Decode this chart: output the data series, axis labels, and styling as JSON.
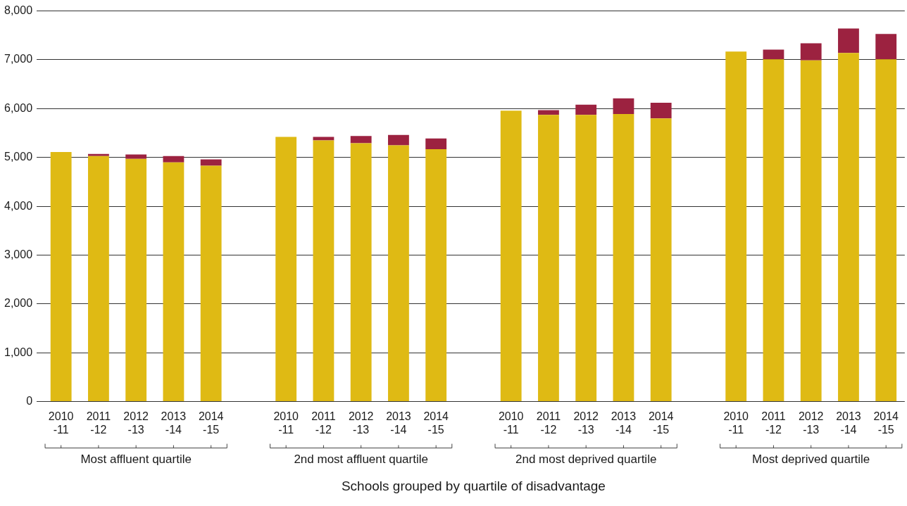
{
  "chart_data": {
    "type": "bar",
    "stacked": true,
    "xlabel": "Schools grouped by quartile of disadvantage",
    "categories": [
      "2010-11",
      "2011-12",
      "2012-13",
      "2013-14",
      "2014-15",
      null,
      "2010-11",
      "2011-12",
      "2012-13",
      "2013-14",
      "2014-15",
      null,
      "2010-11",
      "2011-12",
      "2012-13",
      "2013-14",
      "2014-15",
      null,
      "2010-11",
      "2011-12",
      "2012-13",
      "2013-14",
      "2014-15"
    ],
    "series": [
      {
        "color": "#dfba14",
        "values": [
          5110,
          5030,
          4970,
          4900,
          4830,
          null,
          5420,
          5350,
          5290,
          5250,
          5170,
          null,
          5960,
          5870,
          5870,
          5890,
          5800,
          null,
          7170,
          7010,
          6990,
          7140,
          7010
        ]
      },
      {
        "color": "#9c2240",
        "values": [
          0,
          40,
          90,
          130,
          130,
          null,
          0,
          70,
          150,
          210,
          220,
          null,
          0,
          100,
          210,
          320,
          320,
          null,
          0,
          200,
          350,
          500,
          520
        ]
      }
    ],
    "annotations": [
      "Most affluent quartile",
      "2nd most affluent quartile",
      "2nd most deprived quartile",
      "Most deprived quartile"
    ],
    "ylim": [
      0,
      8000
    ],
    "yticks": [
      {
        "value": 0,
        "label": "0"
      },
      {
        "value": 1000,
        "label": "1,000"
      },
      {
        "value": 2000,
        "label": "2,000"
      },
      {
        "value": 3000,
        "label": "3,000"
      },
      {
        "value": 4000,
        "label": "4,000"
      },
      {
        "value": 5000,
        "label": "5,000"
      },
      {
        "value": 6000,
        "label": "6,000"
      },
      {
        "value": 7000,
        "label": "7,000"
      },
      {
        "value": 8000,
        "label": "8,000"
      }
    ],
    "grid": "y",
    "legend": false
  }
}
